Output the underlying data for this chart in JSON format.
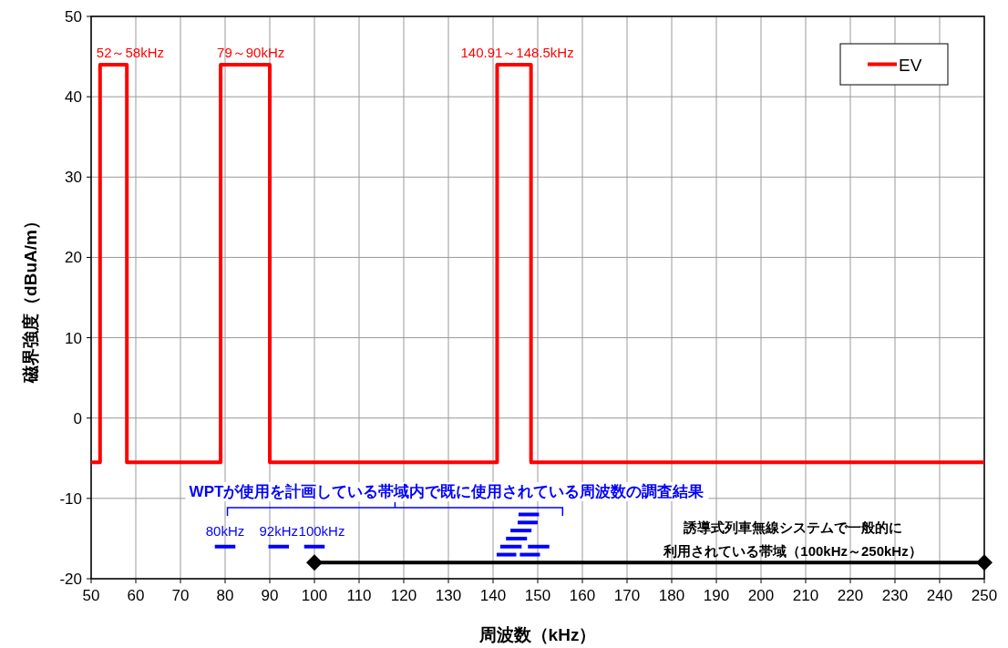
{
  "chart_data": {
    "type": "line",
    "xlabel": "周波数（kHz）",
    "ylabel": "磁界強度（dBuA/m）",
    "xlim": [
      50,
      250
    ],
    "xticks": [
      50,
      60,
      70,
      80,
      90,
      100,
      110,
      120,
      130,
      140,
      150,
      160,
      170,
      180,
      190,
      200,
      210,
      220,
      230,
      240,
      250
    ],
    "ylim": [
      -20,
      50
    ],
    "yticks": [
      -20,
      -10,
      0,
      10,
      20,
      30,
      40,
      50
    ],
    "grid": true,
    "legend": "top right",
    "series": [
      {
        "name": "EV",
        "color": "#ff0000",
        "marker": "none",
        "x": [
          50,
          52,
          52,
          58,
          58,
          79,
          79,
          90,
          90,
          140.91,
          140.91,
          148.5,
          148.5,
          250
        ],
        "values": [
          -5.5,
          -5.5,
          44,
          44,
          -5.5,
          -5.5,
          44,
          44,
          -5.5,
          -5.5,
          44,
          44,
          -5.5,
          -5.5
        ]
      },
      {
        "color": "#0000ff",
        "marker": "none",
        "x": [
          77.7,
          82.3
        ],
        "values": [
          -16,
          -16
        ]
      },
      {
        "color": "#0000ff",
        "marker": "none",
        "x": [
          89.7,
          94.3
        ],
        "values": [
          -16,
          -16
        ]
      },
      {
        "color": "#0000ff",
        "marker": "none",
        "x": [
          97.7,
          102.3
        ],
        "values": [
          -16,
          -16
        ]
      },
      {
        "color": "#0000ff",
        "marker": "none",
        "x": [
          145.7,
          150.3
        ],
        "values": [
          -12,
          -12
        ]
      },
      {
        "color": "#0000ff",
        "marker": "none",
        "x": [
          145.5,
          150
        ],
        "values": [
          -13,
          -13
        ]
      },
      {
        "color": "#0000ff",
        "marker": "none",
        "x": [
          143.9,
          148.6
        ],
        "values": [
          -14,
          -14
        ]
      },
      {
        "color": "#0000ff",
        "marker": "none",
        "x": [
          142.9,
          147.6
        ],
        "values": [
          -15,
          -15
        ]
      },
      {
        "color": "#0000ff",
        "marker": "none",
        "x": [
          141.6,
          146.4
        ],
        "values": [
          -16,
          -16
        ]
      },
      {
        "color": "#0000ff",
        "marker": "none",
        "x": [
          147.8,
          152.6
        ],
        "values": [
          -16,
          -16
        ]
      },
      {
        "color": "#0000ff",
        "marker": "none",
        "x": [
          140.8,
          145.2
        ],
        "values": [
          -17,
          -17
        ]
      },
      {
        "color": "#0000ff",
        "marker": "none",
        "x": [
          146,
          150.5
        ],
        "values": [
          -17,
          -17
        ]
      },
      {
        "color": "#000000",
        "marker": "diamond",
        "x": [
          100,
          250
        ],
        "values": [
          -18,
          -18
        ]
      }
    ],
    "annotations": [
      {
        "text": "52～58kHz",
        "x": 52,
        "y": 44
      },
      {
        "text": "79～90kHz",
        "x": 79,
        "y": 44
      },
      {
        "text": "140.91～148.5kHz",
        "x": 140.91,
        "y": 44
      },
      {
        "text": "80kHz",
        "x": 80,
        "y": -16
      },
      {
        "text": "92kHz",
        "x": 92,
        "y": -16
      },
      {
        "text": "100kHz",
        "x": 100,
        "y": -16
      },
      "WPTが使用を計画している帯域内で既に使用されている周波数の調査結果",
      "誘導式列車無線システムで一般的に",
      "利用されている帯域（100kHz～250kHz）"
    ]
  }
}
